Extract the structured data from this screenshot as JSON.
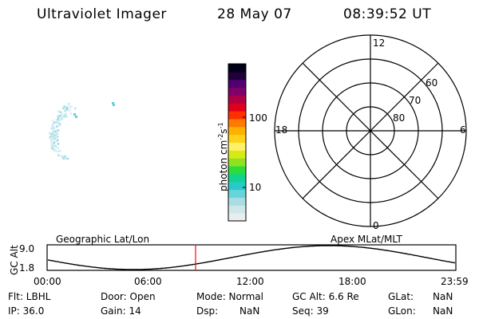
{
  "header": {
    "title": "Ultraviolet Imager",
    "date": "28 May 07",
    "time": "08:39:52 UT"
  },
  "colorbar": {
    "label_prefix": "photon cm",
    "label_sup1": "-2",
    "label_mid": "s",
    "label_sup2": "-1",
    "tick_100": "100",
    "tick_10": "10",
    "stops": [
      "#e8eef0",
      "#cfe7ea",
      "#a8dde4",
      "#67d4dc",
      "#27c9c9",
      "#12d38c",
      "#2cdc3a",
      "#8fe21f",
      "#d8ea16",
      "#fff06a",
      "#ffd21a",
      "#ffb000",
      "#ff7a00",
      "#ff2f00",
      "#e0001a",
      "#b00045",
      "#80006a",
      "#500070",
      "#20003a",
      "#000018"
    ]
  },
  "polar": {
    "label_12": "12",
    "label_6": "6",
    "label_18": "18",
    "label_0": "0",
    "label_60": "60",
    "label_70": "70",
    "label_80": "80"
  },
  "orbit": {
    "left_label": "Geographic Lat/Lon",
    "right_label": "Apex MLat/MLT",
    "axis_label": "GC Alt",
    "y_ticks": [
      "9.0",
      "1.8"
    ],
    "time_ticks": [
      "00:00",
      "06:00",
      "12:00",
      "18:00",
      "23:59"
    ],
    "current_time_marker_color": "#ff0000"
  },
  "info": {
    "row1": [
      "Flt: LBHL",
      "Door: Open",
      "Mode: Normal",
      "GC Alt: 6.6 Re",
      "GLat:",
      "NaN"
    ],
    "row2": [
      "IP: 36.0",
      "Gain: 14",
      "Dsp:",
      "NaN",
      "Seq: 39",
      "GLon:",
      "NaN"
    ]
  }
}
